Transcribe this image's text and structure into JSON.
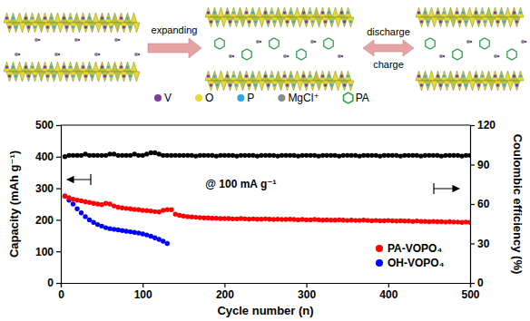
{
  "diagram": {
    "arrow_labels": [
      "expanding",
      "discharge",
      "charge"
    ],
    "legend": [
      {
        "label": "V",
        "color": "#7a3f9d"
      },
      {
        "label": "O",
        "color": "#e8d830"
      },
      {
        "label": "P",
        "color": "#2aa8e0"
      },
      {
        "label": "MgCl⁺",
        "color": "#8a8a8a"
      },
      {
        "label": "PA",
        "color": "#2e9e4a"
      }
    ]
  },
  "chart_data": {
    "type": "scatter",
    "x_label": "Cycle number (n)",
    "y_label": "Capacity (mAh g⁻¹)",
    "y2_label": "Coulombic efficiency (%)",
    "annotation": "@ 100 mA g⁻¹",
    "xlim": [
      0,
      500
    ],
    "xticks": [
      0,
      100,
      200,
      300,
      400,
      500
    ],
    "ylim": [
      0,
      500
    ],
    "yticks": [
      0,
      100,
      200,
      300,
      400,
      500
    ],
    "y2lim": [
      0,
      120
    ],
    "y2ticks": [
      0,
      30,
      60,
      90,
      120
    ],
    "grid": false,
    "legend": "lower right",
    "marker": "circle",
    "series": [
      {
        "name": "PA-VOPO₄",
        "color": "#ff0000",
        "x": [
          5,
          10,
          15,
          20,
          25,
          30,
          35,
          40,
          45,
          50,
          55,
          60,
          65,
          70,
          75,
          80,
          85,
          90,
          95,
          100,
          105,
          110,
          115,
          120,
          125,
          130,
          135,
          140,
          145,
          150,
          155,
          160,
          165,
          170,
          175,
          180,
          185,
          190,
          195,
          200,
          205,
          210,
          215,
          220,
          225,
          230,
          235,
          240,
          245,
          250,
          255,
          260,
          265,
          270,
          275,
          280,
          285,
          290,
          295,
          300,
          305,
          310,
          315,
          320,
          325,
          330,
          335,
          340,
          345,
          350,
          355,
          360,
          365,
          370,
          375,
          380,
          385,
          390,
          395,
          400,
          405,
          410,
          415,
          420,
          425,
          430,
          435,
          440,
          445,
          450,
          455,
          460,
          465,
          470,
          475,
          480,
          485,
          490,
          495,
          500
        ],
        "values": [
          275,
          270,
          265,
          262,
          260,
          257,
          255,
          252,
          250,
          248,
          252,
          250,
          244,
          240,
          238,
          236,
          235,
          233,
          232,
          230,
          229,
          228,
          226,
          225,
          230,
          232,
          232,
          218,
          214,
          212,
          210,
          209,
          208,
          207,
          206,
          206,
          205,
          205,
          204,
          204,
          204,
          203,
          203,
          204,
          203,
          202,
          203,
          202,
          202,
          203,
          202,
          201,
          202,
          201,
          201,
          202,
          201,
          200,
          201,
          200,
          200,
          201,
          200,
          199,
          200,
          199,
          199,
          200,
          199,
          198,
          199,
          198,
          198,
          199,
          198,
          197,
          198,
          197,
          197,
          198,
          197,
          196,
          197,
          196,
          196,
          195,
          196,
          195,
          195,
          194,
          195,
          194,
          194,
          193,
          194,
          193,
          193,
          192,
          193,
          192
        ]
      },
      {
        "name": "OH-VOPO₄",
        "color": "#0000ff",
        "x": [
          5,
          10,
          15,
          20,
          25,
          30,
          35,
          40,
          45,
          50,
          55,
          60,
          65,
          70,
          75,
          80,
          85,
          90,
          95,
          100,
          105,
          110,
          115,
          120,
          125,
          130
        ],
        "values": [
          275,
          262,
          250,
          235,
          222,
          210,
          200,
          192,
          185,
          180,
          175,
          172,
          170,
          168,
          166,
          164,
          162,
          160,
          158,
          155,
          152,
          148,
          143,
          138,
          132,
          125
        ]
      },
      {
        "color": "#000000",
        "axis": "y2",
        "x": [
          5,
          10,
          15,
          20,
          25,
          30,
          35,
          40,
          45,
          50,
          55,
          60,
          65,
          70,
          75,
          80,
          85,
          90,
          95,
          100,
          105,
          110,
          115,
          120,
          125,
          130,
          135,
          140,
          145,
          150,
          155,
          160,
          165,
          170,
          175,
          180,
          185,
          190,
          195,
          200,
          205,
          210,
          215,
          220,
          225,
          230,
          235,
          240,
          245,
          250,
          255,
          260,
          265,
          270,
          275,
          280,
          285,
          290,
          295,
          300,
          305,
          310,
          315,
          320,
          325,
          330,
          335,
          340,
          345,
          350,
          355,
          360,
          365,
          370,
          375,
          380,
          385,
          390,
          395,
          400,
          405,
          410,
          415,
          420,
          425,
          430,
          435,
          440,
          445,
          450,
          455,
          460,
          465,
          470,
          475,
          480,
          485,
          490,
          495,
          500
        ],
        "values": [
          96,
          97,
          97,
          97,
          97,
          98,
          97,
          97,
          97,
          97,
          97,
          98,
          98,
          97,
          97,
          97,
          97,
          98,
          97,
          97,
          98,
          99,
          99,
          98,
          97,
          97,
          97,
          97,
          97,
          97,
          97,
          97,
          96.5,
          97,
          97,
          97,
          97,
          96.5,
          97,
          97,
          97,
          97,
          96.5,
          97,
          97,
          97,
          97,
          96.5,
          97,
          97,
          97,
          97,
          96.5,
          97,
          97,
          97,
          97,
          96.5,
          97,
          97,
          97,
          97,
          96.5,
          97,
          97,
          97,
          97,
          96.5,
          97,
          97,
          97,
          97,
          96.5,
          97,
          97,
          97,
          97,
          96.5,
          97,
          97,
          97,
          97,
          96.5,
          97,
          97,
          97,
          97,
          96.5,
          97,
          97,
          97,
          97,
          96.5,
          97,
          97,
          97,
          97,
          96.5,
          97,
          97
        ]
      }
    ]
  }
}
